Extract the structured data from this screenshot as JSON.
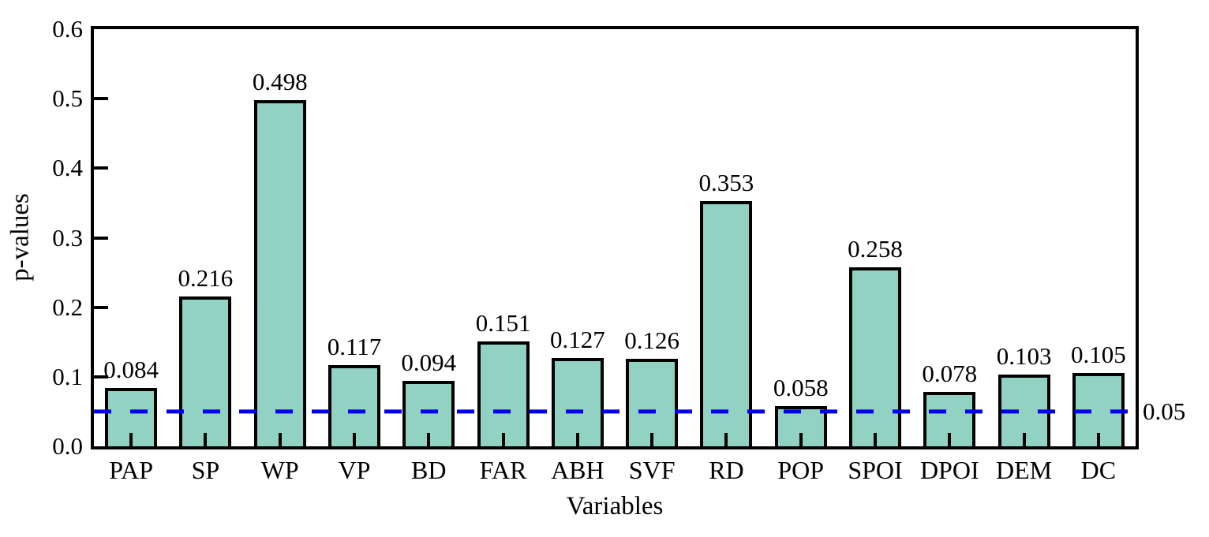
{
  "chart_data": {
    "type": "bar",
    "xlabel": "Variables",
    "ylabel": "p-values",
    "categories": [
      "PAP",
      "SP",
      "WP",
      "VP",
      "BD",
      "FAR",
      "ABH",
      "SVF",
      "RD",
      "POP",
      "SPOI",
      "DPOI",
      "DEM",
      "DC"
    ],
    "values": [
      0.084,
      0.216,
      0.498,
      0.117,
      0.094,
      0.151,
      0.127,
      0.126,
      0.353,
      0.058,
      0.258,
      0.078,
      0.103,
      0.105
    ],
    "value_labels": [
      "0.084",
      "0.216",
      "0.498",
      "0.117",
      "0.094",
      "0.151",
      "0.127",
      "0.126",
      "0.353",
      "0.058",
      "0.258",
      "0.078",
      "0.103",
      "0.105"
    ],
    "ylim": [
      0.0,
      0.6
    ],
    "yticks": [
      "0.0",
      "0.1",
      "0.2",
      "0.3",
      "0.4",
      "0.5",
      "0.6"
    ],
    "threshold": {
      "value": 0.05,
      "label": "0.05",
      "color": "#0000ee",
      "style": "dashed"
    },
    "bar_fill": "#92d2c3",
    "bar_border": "#000000",
    "grid": false,
    "legend": false
  }
}
